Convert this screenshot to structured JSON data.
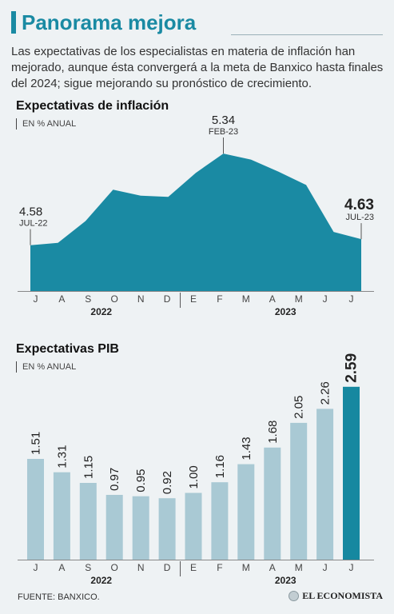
{
  "header": {
    "title": "Panorama mejora",
    "intro": "Las expectativas de los especialistas en materia de inflación han mejorado, aunque ésta convergerá a la meta de Banxico hasta finales del 2024; sigue mejorando su pronóstico de crecimiento."
  },
  "colors": {
    "accent": "#1a8aa3",
    "bar": "#a9c9d4",
    "highlight": "#1688a0"
  },
  "months": [
    "J",
    "A",
    "S",
    "O",
    "N",
    "D",
    "E",
    "F",
    "M",
    "A",
    "M",
    "J",
    "J"
  ],
  "years": [
    "2022",
    "2023"
  ],
  "inflation": {
    "title": "Expectativas de inflación",
    "unit": "EN % ANUAL",
    "start_value": "4.58",
    "start_label": "JUL-22",
    "peak_value": "5.34",
    "peak_label": "FEB-23",
    "end_value": "4.63",
    "end_label": "JUL-23"
  },
  "gdp": {
    "title": "Expectativas PIB",
    "unit": "EN % ANUAL"
  },
  "footer": {
    "source": "FUENTE: BANXICO.",
    "logo": "EL ECONOMISTA"
  },
  "chart_data": [
    {
      "type": "area",
      "title": "Expectativas de inflación",
      "ylabel": "EN % ANUAL",
      "categories": [
        "J",
        "A",
        "S",
        "O",
        "N",
        "D",
        "E",
        "F",
        "M",
        "A",
        "M",
        "J",
        "J"
      ],
      "values": [
        4.58,
        4.6,
        4.78,
        5.04,
        4.99,
        4.98,
        5.18,
        5.34,
        5.29,
        5.19,
        5.08,
        4.69,
        4.63
      ],
      "ylim": [
        4.2,
        5.4
      ]
    },
    {
      "type": "bar",
      "title": "Expectativas PIB",
      "ylabel": "EN % ANUAL",
      "categories": [
        "J",
        "A",
        "S",
        "O",
        "N",
        "D",
        "E",
        "F",
        "M",
        "A",
        "M",
        "J",
        "J"
      ],
      "values": [
        1.51,
        1.31,
        1.15,
        0.97,
        0.95,
        0.92,
        1.0,
        1.16,
        1.43,
        1.68,
        2.05,
        2.26,
        2.59
      ],
      "labels": [
        "1.51",
        "1.31",
        "1.15",
        "0.97",
        "0.95",
        "0.92",
        "1.00",
        "1.16",
        "1.43",
        "1.68",
        "2.05",
        "2.26",
        "2.59"
      ],
      "ylim": [
        0,
        2.6
      ]
    }
  ]
}
